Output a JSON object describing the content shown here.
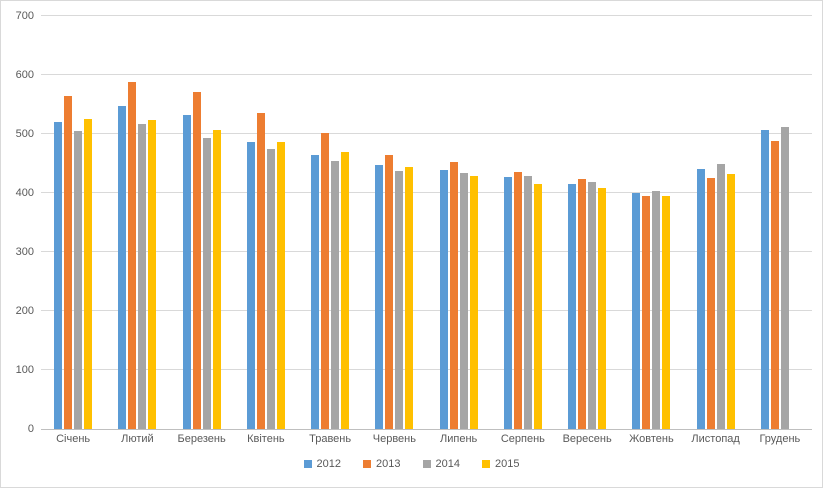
{
  "chart_data": {
    "type": "bar",
    "title": "",
    "xlabel": "",
    "ylabel": "",
    "ylim": [
      0,
      700
    ],
    "y_tick_step": 100,
    "y_ticks": [
      "0",
      "100",
      "200",
      "300",
      "400",
      "500",
      "600",
      "700"
    ],
    "grid": true,
    "legend_position": "bottom",
    "categories": [
      "Січень",
      "Лютий",
      "Березень",
      "Квітень",
      "Травень",
      "Червень",
      "Липень",
      "Серпень",
      "Вересень",
      "Жовтень",
      "Листопад",
      "Грудень"
    ],
    "series": [
      {
        "name": "2012",
        "color": "#5B9BD5",
        "values": [
          521,
          547,
          532,
          486,
          465,
          447,
          439,
          427,
          416,
          400,
          441,
          507
        ]
      },
      {
        "name": "2013",
        "color": "#ED7D31",
        "values": [
          564,
          589,
          571,
          536,
          502,
          465,
          453,
          435,
          423,
          395,
          425,
          488
        ]
      },
      {
        "name": "2014",
        "color": "#A5A5A5",
        "values": [
          505,
          517,
          493,
          474,
          455,
          438,
          434,
          428,
          419,
          404,
          450,
          512
        ]
      },
      {
        "name": "2015",
        "color": "#FFC000",
        "values": [
          525,
          524,
          507,
          487,
          469,
          444,
          429,
          415,
          408,
          395,
          433,
          null
        ]
      }
    ]
  },
  "colors": {
    "gridline": "#d9d9d9",
    "axis_line": "#bfbfbf",
    "label_text": "#595959",
    "background": "#ffffff",
    "chart_border": "#d9d9d9"
  }
}
